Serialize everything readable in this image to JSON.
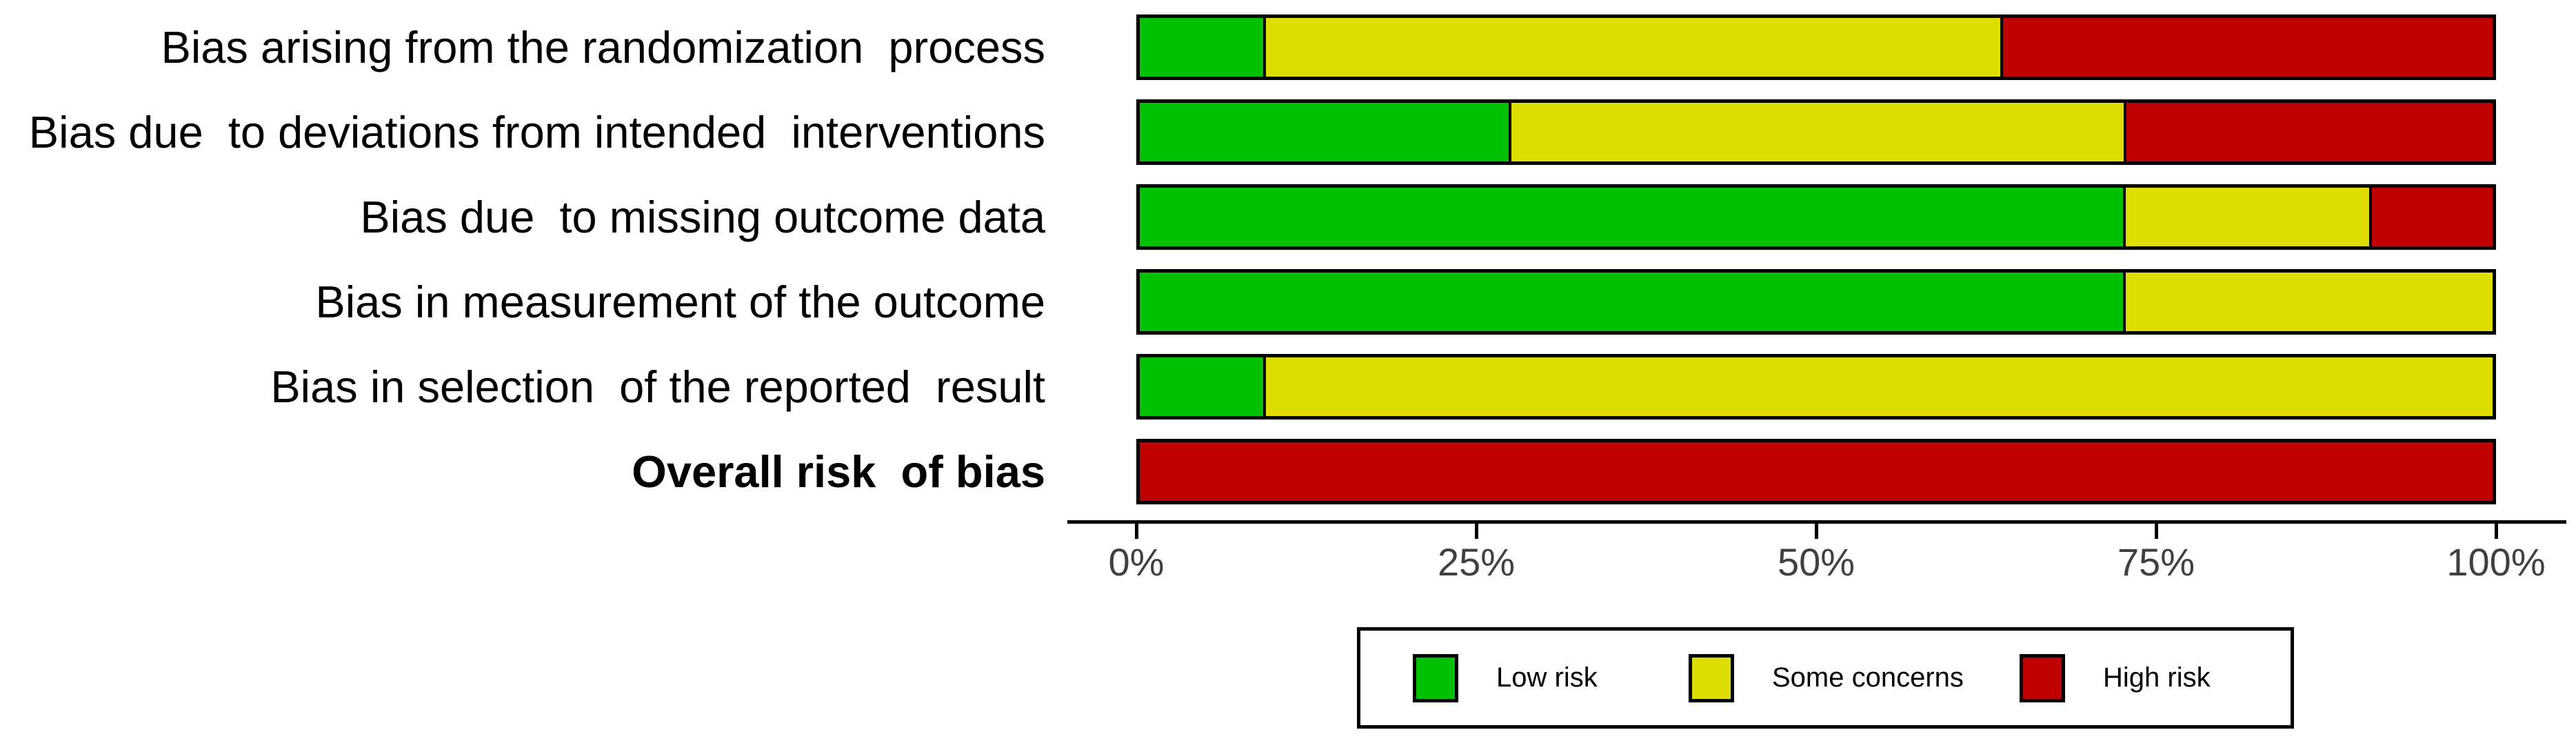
{
  "chart_data": {
    "type": "bar",
    "variant": "horizontal-stacked",
    "title": "",
    "xlabel": "",
    "ylabel": "",
    "xlim": [
      0,
      100
    ],
    "grid": false,
    "legend_position": "bottom",
    "x_ticks": [
      {
        "label": "0%",
        "value": 0
      },
      {
        "label": "25%",
        "value": 25
      },
      {
        "label": "50%",
        "value": 50
      },
      {
        "label": "75%",
        "value": 75
      },
      {
        "label": "100%",
        "value": 100
      }
    ],
    "categories": [
      {
        "label": "Bias arising from the randomization  process",
        "bold": false
      },
      {
        "label": "Bias due  to deviations from intended  interventions",
        "bold": false
      },
      {
        "label": "Bias due  to missing outcome data",
        "bold": false
      },
      {
        "label": "Bias in measurement of the outcome",
        "bold": false
      },
      {
        "label": "Bias in selection  of the reported  result",
        "bold": false
      },
      {
        "label": "Overall risk  of bias",
        "bold": true
      }
    ],
    "series": [
      {
        "name": "Low risk",
        "color": "#02C002",
        "values": [
          9.1,
          27.3,
          72.7,
          72.7,
          9.1,
          0
        ]
      },
      {
        "name": "Some concerns",
        "color": "#DEDE02",
        "values": [
          54.5,
          45.5,
          18.2,
          27.3,
          90.9,
          0
        ]
      },
      {
        "name": "High risk",
        "color": "#BF0000",
        "values": [
          36.4,
          27.3,
          9.1,
          0,
          0,
          100
        ]
      }
    ]
  },
  "legend": {
    "items": [
      {
        "label": "Low risk",
        "color": "#02C002"
      },
      {
        "label": "Some concerns",
        "color": "#DEDE02"
      },
      {
        "label": "High risk",
        "color": "#BF0000"
      }
    ]
  },
  "colors": {
    "low_risk": "#02C002",
    "some_concerns": "#DEDE02",
    "high_risk": "#BF0000",
    "bar_outline": "#000000",
    "axis_line": "#000000",
    "tick_label": "#404040"
  }
}
